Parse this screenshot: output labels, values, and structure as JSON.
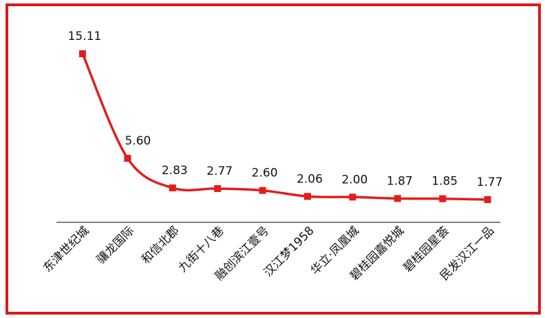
{
  "chart_data": {
    "type": "line",
    "title": "",
    "xlabel": "",
    "ylabel": "",
    "categories": [
      "东津世纪城",
      "骧龙国际",
      "和信北郡",
      "九街十八巷",
      "融创滨江壹号",
      "汉江梦1958",
      "华立·凤凰城",
      "碧桂园嘉悦城",
      "碧桂园星荟",
      "民发汉江一品"
    ],
    "values": [
      15.11,
      5.6,
      2.83,
      2.77,
      2.6,
      2.06,
      2.0,
      1.87,
      1.85,
      1.77
    ],
    "value_labels": [
      "15.11",
      "5.60",
      "2.83",
      "2.77",
      "2.60",
      "2.06",
      "2.00",
      "1.87",
      "1.85",
      "1.77"
    ],
    "grid": false,
    "legend": null,
    "y_axis_visible": false,
    "series": [
      {
        "name": "",
        "values": [
          15.11,
          5.6,
          2.83,
          2.77,
          2.6,
          2.06,
          2.0,
          1.87,
          1.85,
          1.77
        ]
      }
    ]
  },
  "style": {
    "line_color": "#e31d1d",
    "border_color": "#d71a1f",
    "axis_color": "#000000"
  }
}
